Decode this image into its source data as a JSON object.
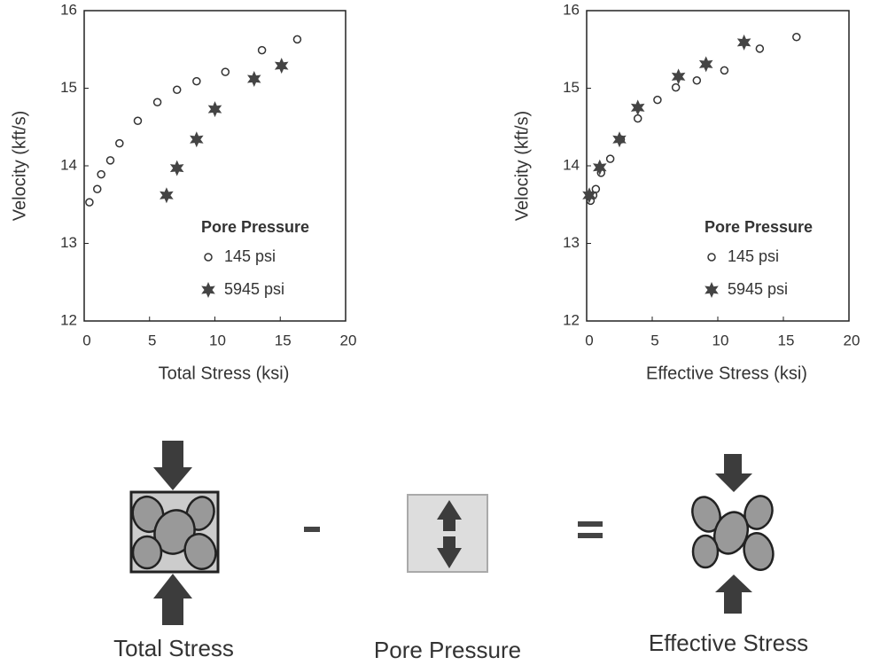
{
  "chart_data": [
    {
      "type": "scatter",
      "y_label": "Velocity (kft/s)",
      "x_label": "Total Stress (ksi)",
      "xlim": [
        0,
        20
      ],
      "ylim": [
        12,
        16
      ],
      "xticks": [
        0,
        5,
        10,
        15,
        20
      ],
      "yticks": [
        12,
        13,
        14,
        15,
        16
      ],
      "legend_title": "Pore Pressure",
      "legend": "lower right",
      "series": [
        {
          "name": "145 psi",
          "marker": "circle",
          "color": "#333333",
          "x": [
            0.4,
            1.0,
            1.3,
            2.0,
            2.7,
            4.1,
            5.6,
            7.1,
            8.6,
            10.8,
            13.6,
            16.3
          ],
          "values": [
            13.53,
            13.7,
            13.89,
            14.07,
            14.29,
            14.58,
            14.82,
            14.98,
            15.09,
            15.21,
            15.49,
            15.63
          ]
        },
        {
          "name": "5945 psi",
          "marker": "star",
          "color": "#444444",
          "x": [
            6.3,
            7.1,
            8.6,
            10.0,
            13.0,
            15.1
          ],
          "values": [
            13.62,
            13.97,
            14.34,
            14.73,
            15.12,
            15.29
          ]
        }
      ]
    },
    {
      "type": "scatter",
      "y_label": "Velocity (kft/s)",
      "x_label": "Effective Stress (ksi)",
      "xlim": [
        0,
        20
      ],
      "ylim": [
        12,
        16
      ],
      "xticks": [
        0,
        5,
        10,
        15,
        20
      ],
      "yticks": [
        12,
        13,
        14,
        15,
        16
      ],
      "legend_title": "Pore Pressure",
      "legend": "lower right",
      "series": [
        {
          "name": "145 psi",
          "marker": "circle",
          "color": "#333333",
          "x": [
            0.3,
            0.5,
            0.7,
            1.1,
            1.8,
            2.6,
            3.9,
            5.4,
            6.8,
            8.4,
            10.5,
            13.2,
            16.0
          ],
          "values": [
            13.55,
            13.62,
            13.7,
            13.91,
            14.09,
            14.34,
            14.61,
            14.85,
            15.01,
            15.1,
            15.23,
            15.51,
            15.66
          ]
        },
        {
          "name": "5945 psi",
          "marker": "star",
          "color": "#444444",
          "x": [
            0.2,
            1.0,
            2.5,
            3.9,
            7.0,
            9.1,
            12.0
          ],
          "values": [
            13.62,
            13.98,
            14.34,
            14.75,
            15.15,
            15.31,
            15.59
          ]
        }
      ]
    }
  ],
  "diagram": {
    "labels": [
      "Total Stress",
      "Pore Pressure",
      "Effective Stress"
    ]
  }
}
